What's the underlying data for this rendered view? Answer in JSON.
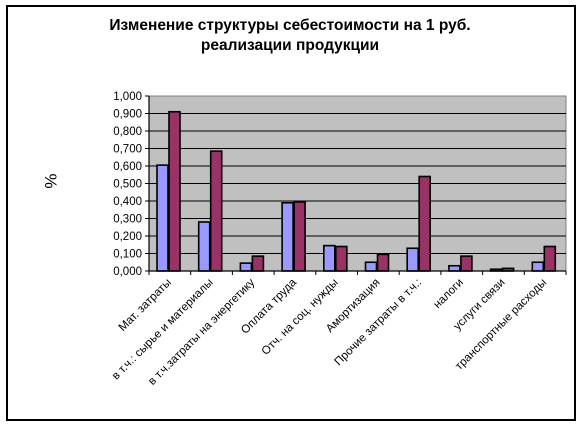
{
  "chart_data": {
    "type": "bar",
    "title_line1": "Изменение структуры себестоимости на 1 руб.",
    "title_line2": "реализации продукции",
    "ylabel": "%",
    "xlabel": "",
    "ylim": [
      0,
      1
    ],
    "y_ticks": [
      "0,000",
      "0,100",
      "0,200",
      "0,300",
      "0,400",
      "0,500",
      "0,600",
      "0,700",
      "0,800",
      "0,900",
      "1,000"
    ],
    "grid": true,
    "legend": "none",
    "categories": [
      "Мат. затраты",
      "в т.ч.: сырье и материалы",
      "в т.ч.затраты на энергетику",
      "Оплата труда",
      "Отч. на соц. нужды",
      "Амортизация",
      "Прочие затраты в т.ч.:",
      "налоги",
      "услуги связи",
      "транспортные расходы"
    ],
    "series": [
      {
        "color": "#9999ff",
        "values": [
          0.605,
          0.28,
          0.045,
          0.39,
          0.145,
          0.05,
          0.13,
          0.03,
          0.01,
          0.05
        ]
      },
      {
        "color": "#993366",
        "values": [
          0.91,
          0.685,
          0.085,
          0.395,
          0.14,
          0.095,
          0.54,
          0.085,
          0.015,
          0.14
        ]
      }
    ],
    "plot_background": "#c0c0c0"
  }
}
